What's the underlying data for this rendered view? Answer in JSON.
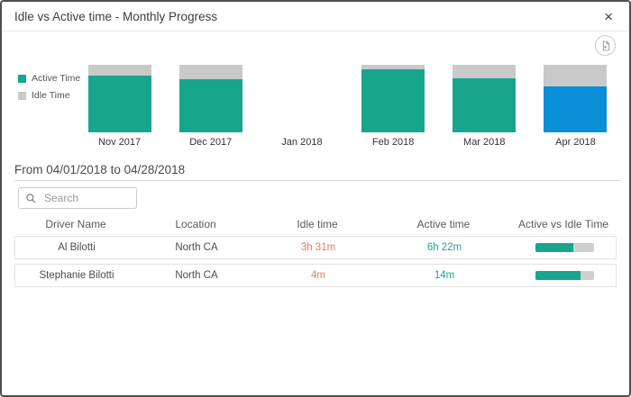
{
  "modal": {
    "title": "Idle vs Active time - Monthly Progress",
    "close_label": "×"
  },
  "chart_data": {
    "type": "bar",
    "stacked": true,
    "unit": "percent_of_total_bar_height",
    "categories": [
      "Nov 2017",
      "Dec 2017",
      "Jan 2018",
      "Feb 2018",
      "Mar 2018",
      "Apr 2018"
    ],
    "series": [
      {
        "name": "Active Time",
        "values": [
          84,
          79,
          0,
          93,
          80,
          68
        ]
      },
      {
        "name": "Idle Time",
        "values": [
          16,
          21,
          0,
          7,
          20,
          32
        ]
      }
    ],
    "highlighted_category": "Apr 2018",
    "legend_position": "left",
    "colors": {
      "active": "#17a58c",
      "idle": "#c9c9c9",
      "highlight_active": "#0a8fd8"
    }
  },
  "period": {
    "label": "From 04/01/2018 to 04/28/2018"
  },
  "search": {
    "placeholder": "Search"
  },
  "table": {
    "columns": [
      "Driver Name",
      "Location",
      "Idle time",
      "Active time",
      "Active vs Idle Time"
    ],
    "rows": [
      {
        "driver_name": "Al Bilotti",
        "location": "North CA",
        "idle_time": "3h 31m",
        "active_time": "6h 22m",
        "active_pct": 65
      },
      {
        "driver_name": "Stephanie Bilotti",
        "location": "North CA",
        "idle_time": "4m",
        "active_time": "14m",
        "active_pct": 78
      }
    ]
  }
}
